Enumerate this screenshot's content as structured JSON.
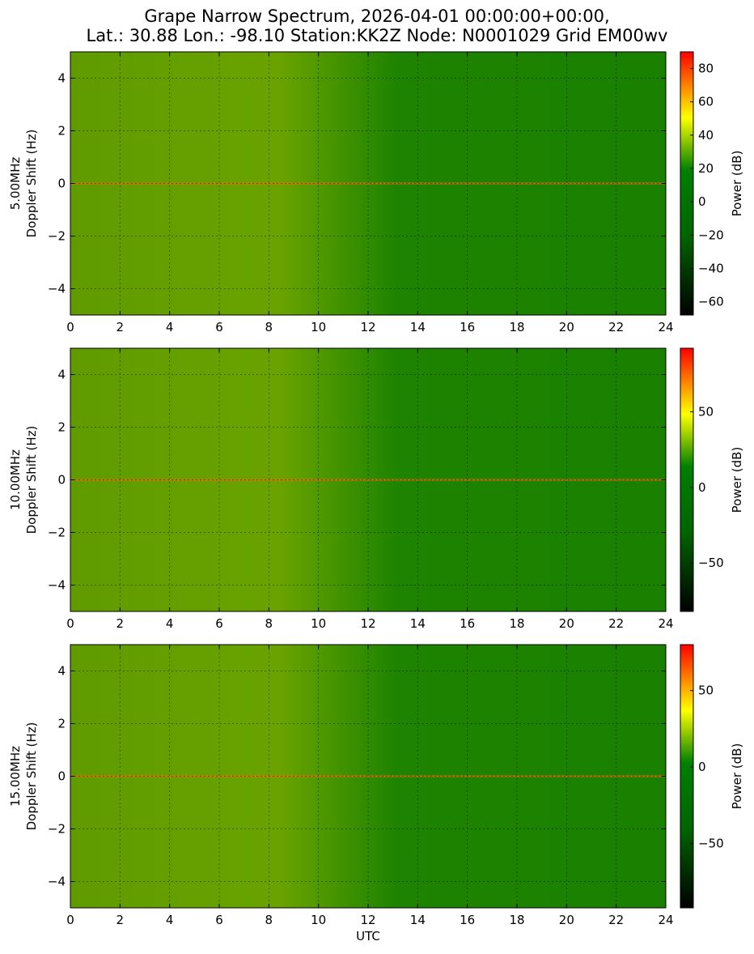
{
  "title": {
    "line1": "Grape Narrow Spectrum, 2026-04-01 00:00:00+00:00,",
    "line2": "Lat.: 30.88 Lon.: -98.10 Station:KK2Z Node: N0001029 Grid EM00wv"
  },
  "colors": {
    "colormap": [
      "#000000",
      "#006400",
      "#008000",
      "#ffff00",
      "#ff0000"
    ],
    "grid": "#000000"
  },
  "chart_data": [
    {
      "type": "heatmap",
      "title": "",
      "ylabel_line1": "5.00MHz",
      "ylabel_line2": "Doppler Shift (Hz)",
      "xlabel": "",
      "xlim": [
        0,
        24
      ],
      "ylim": [
        -5,
        5
      ],
      "xticks": [
        0,
        2,
        4,
        6,
        8,
        10,
        12,
        14,
        16,
        18,
        20,
        22,
        24
      ],
      "yticks": [
        -4,
        -2,
        0,
        2,
        4
      ],
      "grid": true,
      "colorbar": {
        "label": "Power (dB)",
        "range": [
          -68,
          90
        ],
        "ticks": [
          -60,
          -40,
          -20,
          0,
          20,
          40,
          60,
          80
        ]
      }
    },
    {
      "type": "heatmap",
      "title": "",
      "ylabel_line1": "10.00MHz",
      "ylabel_line2": "Doppler Shift (Hz)",
      "xlabel": "",
      "xlim": [
        0,
        24
      ],
      "ylim": [
        -5,
        5
      ],
      "xticks": [
        0,
        2,
        4,
        6,
        8,
        10,
        12,
        14,
        16,
        18,
        20,
        22,
        24
      ],
      "yticks": [
        -4,
        -2,
        0,
        2,
        4
      ],
      "grid": true,
      "colorbar": {
        "label": "Power (dB)",
        "range": [
          -82,
          92
        ],
        "ticks": [
          -50,
          0,
          50
        ]
      }
    },
    {
      "type": "heatmap",
      "title": "",
      "ylabel_line1": "15.00MHz",
      "ylabel_line2": "Doppler Shift (Hz)",
      "xlabel": "UTC",
      "xlim": [
        0,
        24
      ],
      "ylim": [
        -5,
        5
      ],
      "xticks": [
        0,
        2,
        4,
        6,
        8,
        10,
        12,
        14,
        16,
        18,
        20,
        22,
        24
      ],
      "yticks": [
        -4,
        -2,
        0,
        2,
        4
      ],
      "grid": true,
      "colorbar": {
        "label": "Power (dB)",
        "range": [
          -92,
          80
        ],
        "ticks": [
          -50,
          0,
          50
        ]
      }
    }
  ]
}
